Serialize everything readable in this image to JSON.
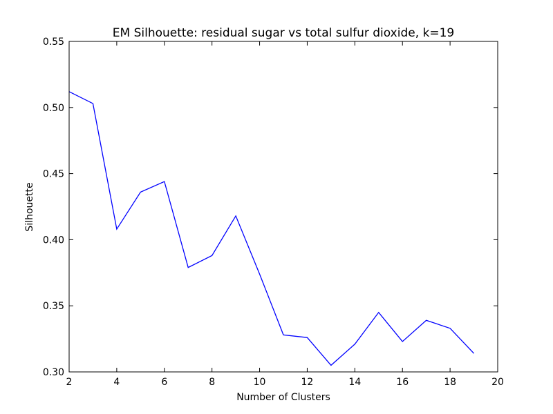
{
  "chart_data": {
    "type": "line",
    "title": "EM Silhouette: residual sugar vs total sulfur dioxide, k=19",
    "xlabel": "Number of Clusters",
    "ylabel": "Silhouette",
    "xlim": [
      2,
      20
    ],
    "ylim": [
      0.3,
      0.55
    ],
    "xticks": [
      "2",
      "4",
      "6",
      "8",
      "10",
      "12",
      "14",
      "16",
      "18",
      "20"
    ],
    "yticks": [
      "0.30",
      "0.35",
      "0.40",
      "0.45",
      "0.50",
      "0.55"
    ],
    "grid": false,
    "line_color": "#0000ff",
    "series": [
      {
        "x": [
          2,
          3,
          4,
          5,
          6,
          7,
          8,
          9,
          10,
          11,
          12,
          13,
          14,
          15,
          16,
          17,
          18,
          19
        ],
        "values": [
          0.512,
          0.503,
          0.408,
          0.436,
          0.444,
          0.379,
          0.388,
          0.418,
          0.374,
          0.328,
          0.326,
          0.305,
          0.321,
          0.345,
          0.323,
          0.339,
          0.333,
          0.314
        ]
      }
    ]
  }
}
